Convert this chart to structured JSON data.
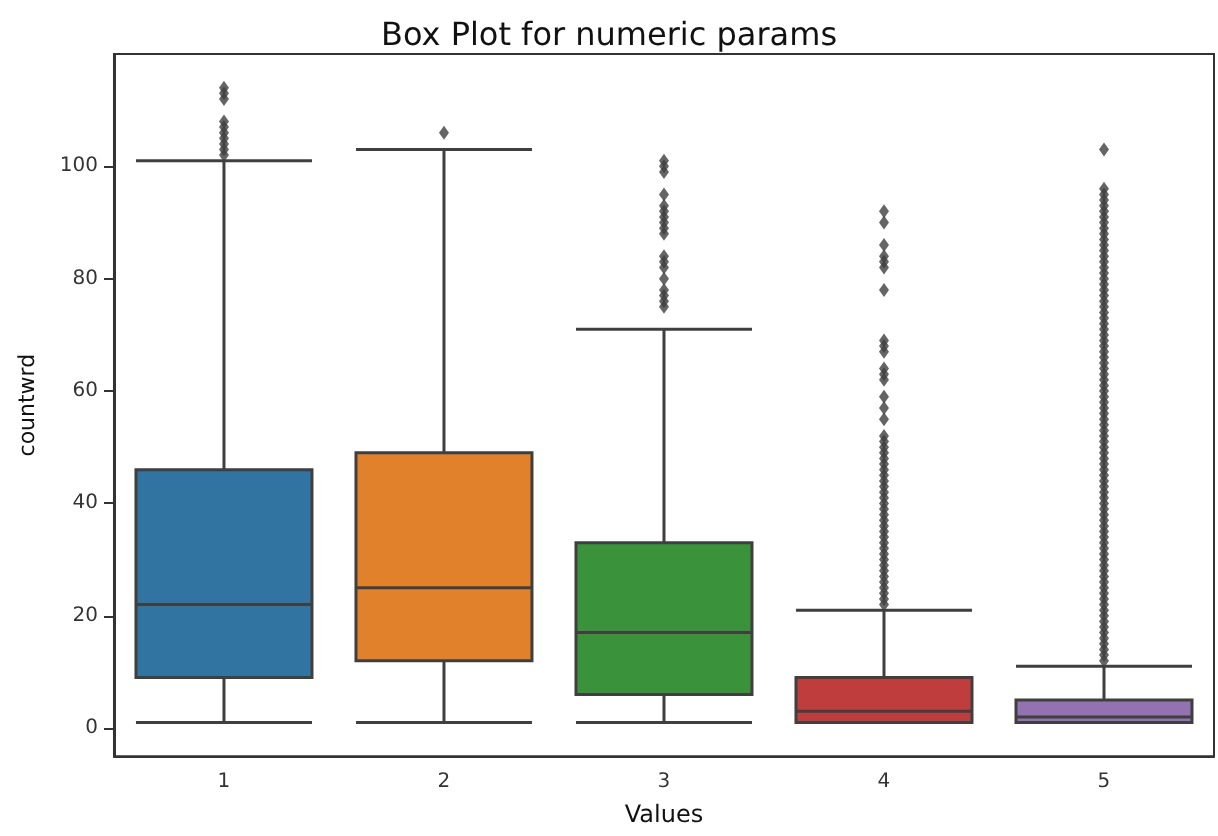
{
  "chart_data": {
    "type": "box",
    "title": "Box Plot for numeric params",
    "xlabel": "Values",
    "ylabel": "countwrd",
    "categories": [
      "1",
      "2",
      "3",
      "4",
      "5"
    ],
    "colors": [
      "#3274a1",
      "#e1812c",
      "#3a923a",
      "#c03d3e",
      "#9372b2"
    ],
    "boxes": [
      {
        "low": 1,
        "q1": 9,
        "median": 22,
        "q3": 46,
        "high": 101,
        "outliers": [
          102,
          103,
          104,
          105,
          106,
          107,
          108,
          112,
          113,
          114
        ]
      },
      {
        "low": 1,
        "q1": 12,
        "median": 25,
        "q3": 49,
        "high": 103,
        "outliers": [
          106
        ]
      },
      {
        "low": 1,
        "q1": 6,
        "median": 17,
        "q3": 33,
        "high": 71,
        "outliers": [
          75,
          76,
          77,
          78,
          80,
          82,
          83,
          84,
          88,
          89,
          90,
          91,
          92,
          93,
          95,
          99,
          100,
          101
        ]
      },
      {
        "low": 1,
        "q1": 1,
        "median": 3,
        "q3": 9,
        "high": 21,
        "outliers": [
          22,
          23,
          24,
          25,
          26,
          27,
          28,
          29,
          30,
          31,
          32,
          33,
          34,
          35,
          36,
          37,
          38,
          39,
          40,
          41,
          42,
          43,
          44,
          45,
          46,
          47,
          48,
          49,
          50,
          51,
          52,
          55,
          57,
          59,
          62,
          63,
          64,
          67,
          68,
          69,
          78,
          82,
          83,
          84,
          86,
          90,
          92
        ]
      },
      {
        "low": 1,
        "q1": 1,
        "median": 2,
        "q3": 5,
        "high": 11,
        "outliers": [
          12,
          13,
          14,
          15,
          16,
          17,
          18,
          19,
          20,
          21,
          22,
          23,
          24,
          25,
          26,
          27,
          28,
          29,
          30,
          31,
          32,
          33,
          34,
          35,
          36,
          37,
          38,
          39,
          40,
          41,
          42,
          43,
          44,
          45,
          46,
          47,
          48,
          49,
          50,
          51,
          52,
          53,
          54,
          55,
          56,
          57,
          58,
          59,
          60,
          61,
          62,
          63,
          64,
          65,
          66,
          67,
          68,
          69,
          70,
          71,
          72,
          73,
          74,
          75,
          76,
          77,
          78,
          79,
          80,
          81,
          82,
          83,
          84,
          85,
          86,
          87,
          88,
          89,
          90,
          91,
          92,
          93,
          94,
          95,
          96,
          103
        ]
      }
    ],
    "ylim": [
      -5,
      120
    ],
    "yticks": [
      0,
      20,
      40,
      60,
      80,
      100
    ],
    "grid": false,
    "marker": "diamond"
  }
}
